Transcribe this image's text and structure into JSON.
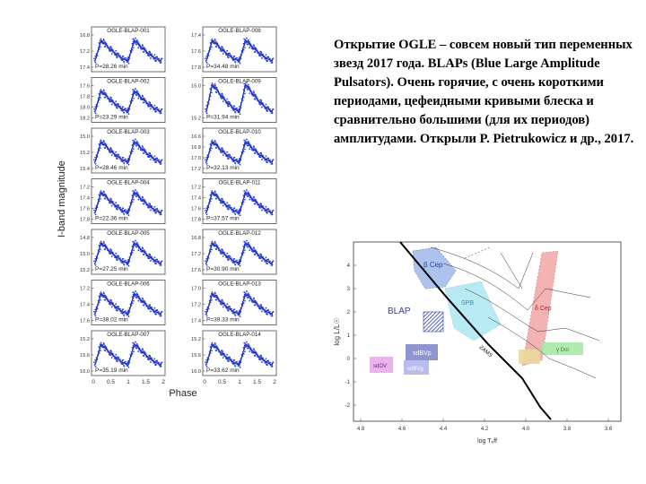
{
  "caption": "Открытие OGLE – совсем новый тип переменных звезд 2017 года. BLAPs (Blue Large Amplitude Pulsators). Очень горячие, с очень короткими периодами, цефеидными кривыми блеска и сравнительно большими (для их периодов) амплитудами. Открыли P. Pietrukowicz и др., 2017.",
  "light_curves": {
    "ylabel": "I-band magnitude",
    "xlabel": "Phase",
    "x_ticks": [
      "0",
      "0.5",
      "1",
      "1.5",
      "2"
    ],
    "panels": [
      {
        "name": "OGLE-BLAP-001",
        "period": "P=28.26 min",
        "y_ticks": [
          "16.8",
          "17.2",
          "17.4"
        ]
      },
      {
        "name": "OGLE-BLAP-002",
        "period": "P=23.29 min",
        "y_ticks": [
          "17.6",
          "17.8",
          "18.0",
          "18.2"
        ]
      },
      {
        "name": "OGLE-BLAP-003",
        "period": "P=28.46 min",
        "y_ticks": [
          "15.0",
          "15.2",
          "15.4"
        ]
      },
      {
        "name": "OGLE-BLAP-004",
        "period": "P=22.36 min",
        "y_ticks": [
          "17.2",
          "17.4",
          "17.6",
          "17.8"
        ]
      },
      {
        "name": "OGLE-BLAP-005",
        "period": "P=27.25 min",
        "y_ticks": [
          "14.8",
          "15.0",
          "15.2"
        ]
      },
      {
        "name": "OGLE-BLAP-006",
        "period": "P=38.02 min",
        "y_ticks": [
          "17.2",
          "17.4",
          "17.6"
        ]
      },
      {
        "name": "OGLE-BLAP-007",
        "period": "P=35.19 min",
        "y_ticks": [
          "15.2",
          "15.6",
          "16.0"
        ]
      },
      {
        "name": "OGLE-BLAP-008",
        "period": "P=34.48 min",
        "y_ticks": [
          "17.4",
          "17.6",
          "17.8"
        ]
      },
      {
        "name": "OGLE-BLAP-009",
        "period": "P=31.94 min",
        "y_ticks": [
          "15.0",
          "15.2"
        ]
      },
      {
        "name": "OGLE-BLAP-010",
        "period": "P=32.13 min",
        "y_ticks": [
          "16.6",
          "16.8",
          "17.0",
          "17.2"
        ]
      },
      {
        "name": "OGLE-BLAP-011",
        "period": "P=37.57 min",
        "y_ticks": [
          "17.2",
          "17.4",
          "17.6",
          "17.8"
        ]
      },
      {
        "name": "OGLE-BLAP-012",
        "period": "P=30.90 min",
        "y_ticks": [
          "16.8",
          "17.2",
          "17.6"
        ]
      },
      {
        "name": "OGLE-BLAP-013",
        "period": "P=39.33 min",
        "y_ticks": [
          "17.0",
          "17.2",
          "17.4"
        ]
      },
      {
        "name": "OGLE-BLAP-014",
        "period": "P=33.62 min",
        "y_ticks": [
          "15.2",
          "15.6",
          "16.0"
        ]
      }
    ]
  },
  "hr_diagram": {
    "ylabel": "log L/L☉",
    "xlabel": "log Tₑff",
    "x_ticks": [
      "4.8",
      "4.6",
      "4.4",
      "4.2",
      "4.0",
      "3.8",
      "3.6"
    ],
    "y_ticks": [
      "4",
      "3",
      "2",
      "1",
      "0",
      "-1",
      "-2"
    ],
    "labels": {
      "beta_cep": "β Cep",
      "spb": "SPB",
      "blap": "BLAP",
      "dcep": "δ Cep",
      "zams": "ZAMS",
      "sdbv_p": "sdBVp",
      "sdbv_g": "sdBVg",
      "sdov": "sdOV",
      "gdor": "γ Dor"
    },
    "colors": {
      "beta_cep": "#9fb9ea",
      "spb": "#a6e6ef",
      "blap": "#2f3fa6",
      "dcep": "#f2a6a6",
      "sdbv_p": "#2f3fa6",
      "sdbv_g": "#8a8fe0",
      "sdov": "#e6a6ea",
      "gdor": "#e8d89a",
      "green": "#a6e8a6"
    }
  }
}
